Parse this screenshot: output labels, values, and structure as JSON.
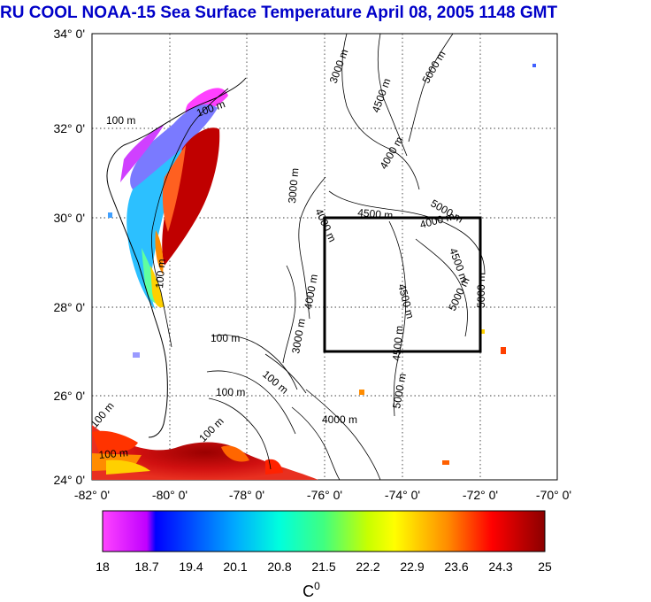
{
  "title": "RU COOL  NOAA-15 Sea Surface Temperature April 08, 2005 1148 GMT",
  "map": {
    "lat_labels": [
      "34° 0'",
      "32° 0'",
      "30° 0'",
      "28° 0'",
      "26° 0'",
      "24° 0'"
    ],
    "lon_labels": [
      "-82° 0'",
      "-80° 0'",
      "-78° 0'",
      "-76° 0'",
      "-74° 0'",
      "-72° 0'",
      "-70° 0'"
    ],
    "lat_range": [
      24,
      34
    ],
    "lon_range": [
      -82,
      -70
    ],
    "study_box": {
      "lon": [
        -76,
        -72
      ],
      "lat": [
        27,
        30
      ]
    },
    "contour_labels": [
      "3000 m",
      "5000 m",
      "4500 m",
      "4000 m",
      "5000 m",
      "3000 m",
      "4000 m",
      "4500 m",
      "4000 m",
      "4500 m",
      "4500 m",
      "5000 m",
      "5000 m",
      "4000 m",
      "3000 m",
      "4500 m",
      "5000 m",
      "100 m",
      "100 m",
      "100 m",
      "100 m",
      "100 m",
      "100 m",
      "100 m",
      "100 m",
      "4000 m",
      "100 m"
    ]
  },
  "colorbar": {
    "ticks": [
      "18",
      "18.7",
      "19.4",
      "20.1",
      "20.8",
      "21.5",
      "22.2",
      "22.9",
      "23.6",
      "24.3",
      "25"
    ],
    "unit_base": "C",
    "unit_sup": "0",
    "range": [
      18,
      25
    ],
    "colors": [
      "#ff00ff",
      "#0000ff",
      "#00c8ff",
      "#00ffb0",
      "#c8ff00",
      "#ffff00",
      "#ff8c00",
      "#ff0000",
      "#8b0000"
    ]
  }
}
